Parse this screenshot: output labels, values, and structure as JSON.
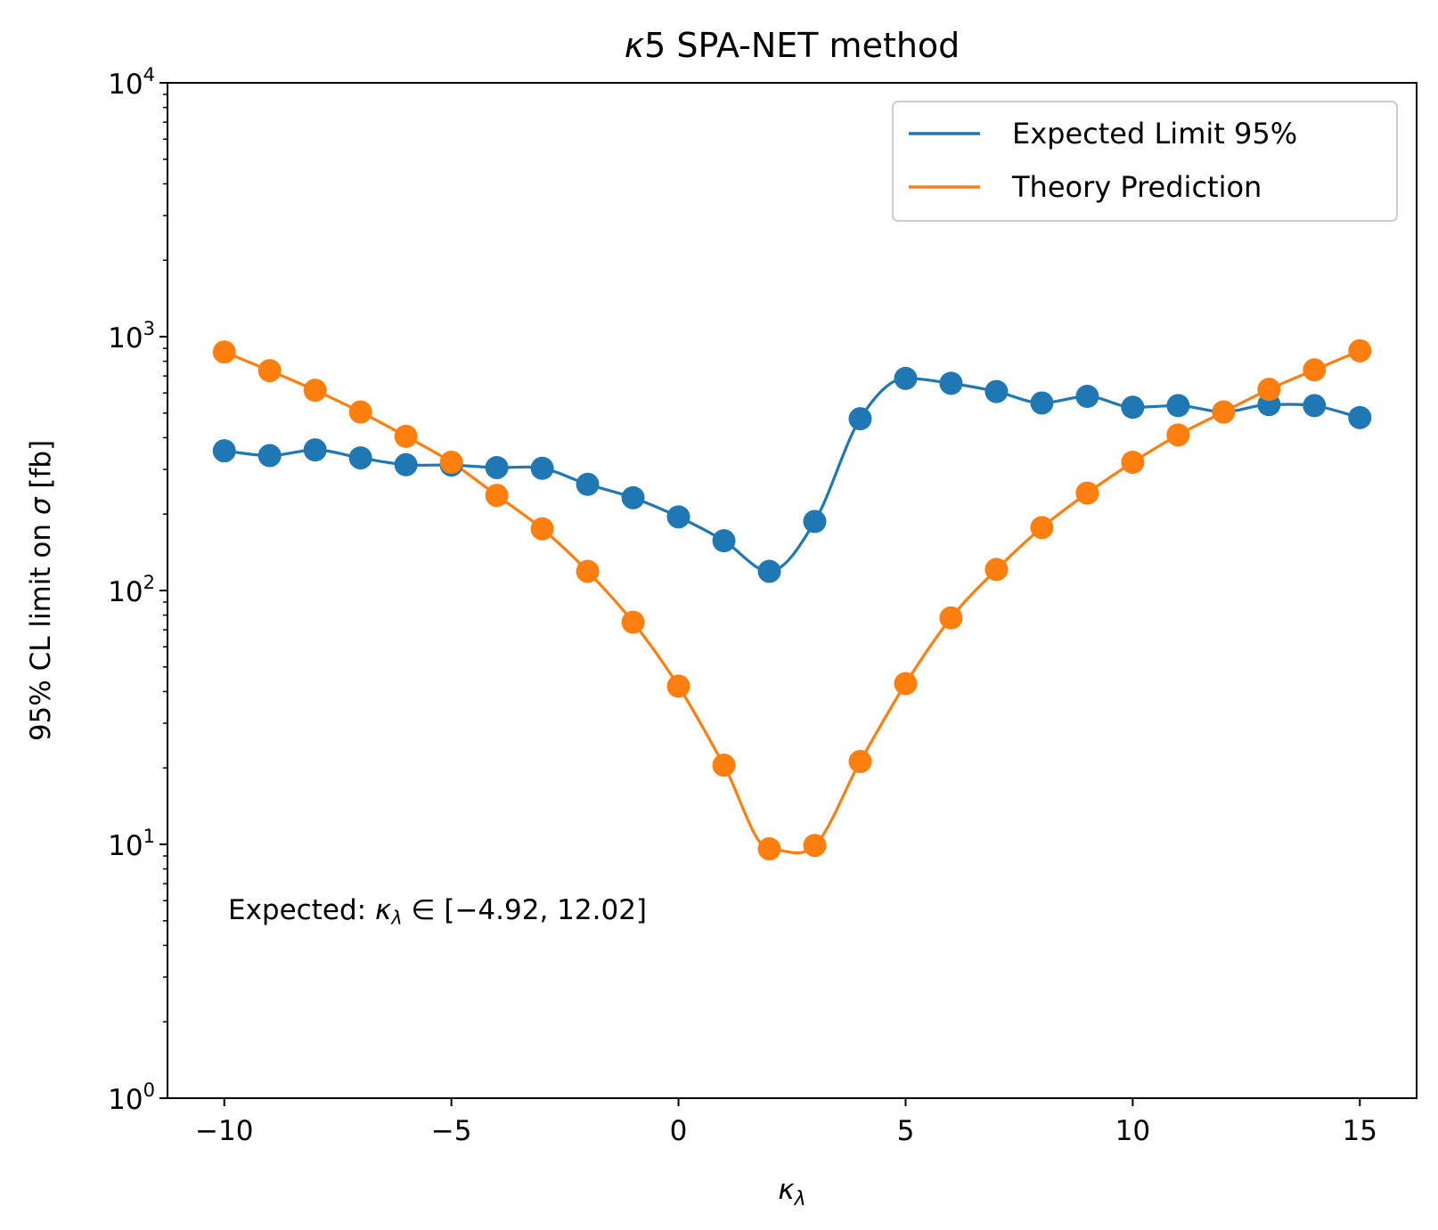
{
  "chart_data": {
    "type": "line",
    "title_prefix": "κ",
    "title_rest": "5 SPA-NET method",
    "xlabel_main": "κ",
    "xlabel_sub": "λ",
    "ylabel_prefix": "95% CL limit on ",
    "ylabel_sym": "σ",
    "ylabel_suffix": " [fb]",
    "xlim": [
      -11.25,
      16.25
    ],
    "ylim": [
      1,
      10000
    ],
    "yscale": "log",
    "grid": false,
    "legend_position": "top-right",
    "x_ticks": [
      -10,
      -5,
      0,
      5,
      10,
      15
    ],
    "x_tick_labels": [
      "−10",
      "−5",
      "0",
      "5",
      "10",
      "15"
    ],
    "y_ticks": [
      {
        "value": 1,
        "base": "10",
        "exp": "0"
      },
      {
        "value": 10,
        "base": "10",
        "exp": "1"
      },
      {
        "value": 100,
        "base": "10",
        "exp": "2"
      },
      {
        "value": 1000,
        "base": "10",
        "exp": "3"
      },
      {
        "value": 10000,
        "base": "10",
        "exp": "4"
      }
    ],
    "x": [
      -10,
      -9,
      -8,
      -7,
      -6,
      -5,
      -4,
      -3,
      -2,
      -1,
      0,
      1,
      2,
      3,
      4,
      5,
      6,
      7,
      8,
      9,
      10,
      11,
      12,
      13,
      14,
      15
    ],
    "series": [
      {
        "name": "Expected Limit 95%",
        "color": "#1f77b4",
        "values": [
          355,
          340,
          358,
          333,
          313,
          312,
          305,
          303,
          262,
          232,
          195,
          157,
          119,
          187,
          475,
          685,
          655,
          608,
          548,
          582,
          527,
          535,
          505,
          540,
          535,
          480
        ]
      },
      {
        "name": "Theory Prediction",
        "color": "#ff7f0e",
        "values": [
          870,
          735,
          615,
          505,
          405,
          320,
          237,
          175,
          119,
          75,
          42,
          20.5,
          9.6,
          9.9,
          21.2,
          43,
          78,
          121,
          177,
          242,
          320,
          410,
          505,
          620,
          740,
          880
        ]
      }
    ],
    "annotation": {
      "prefix": "Expected: ",
      "sym": "κ",
      "sub": "λ",
      "rest": " ∈ [−4.92, 12.02]"
    }
  }
}
